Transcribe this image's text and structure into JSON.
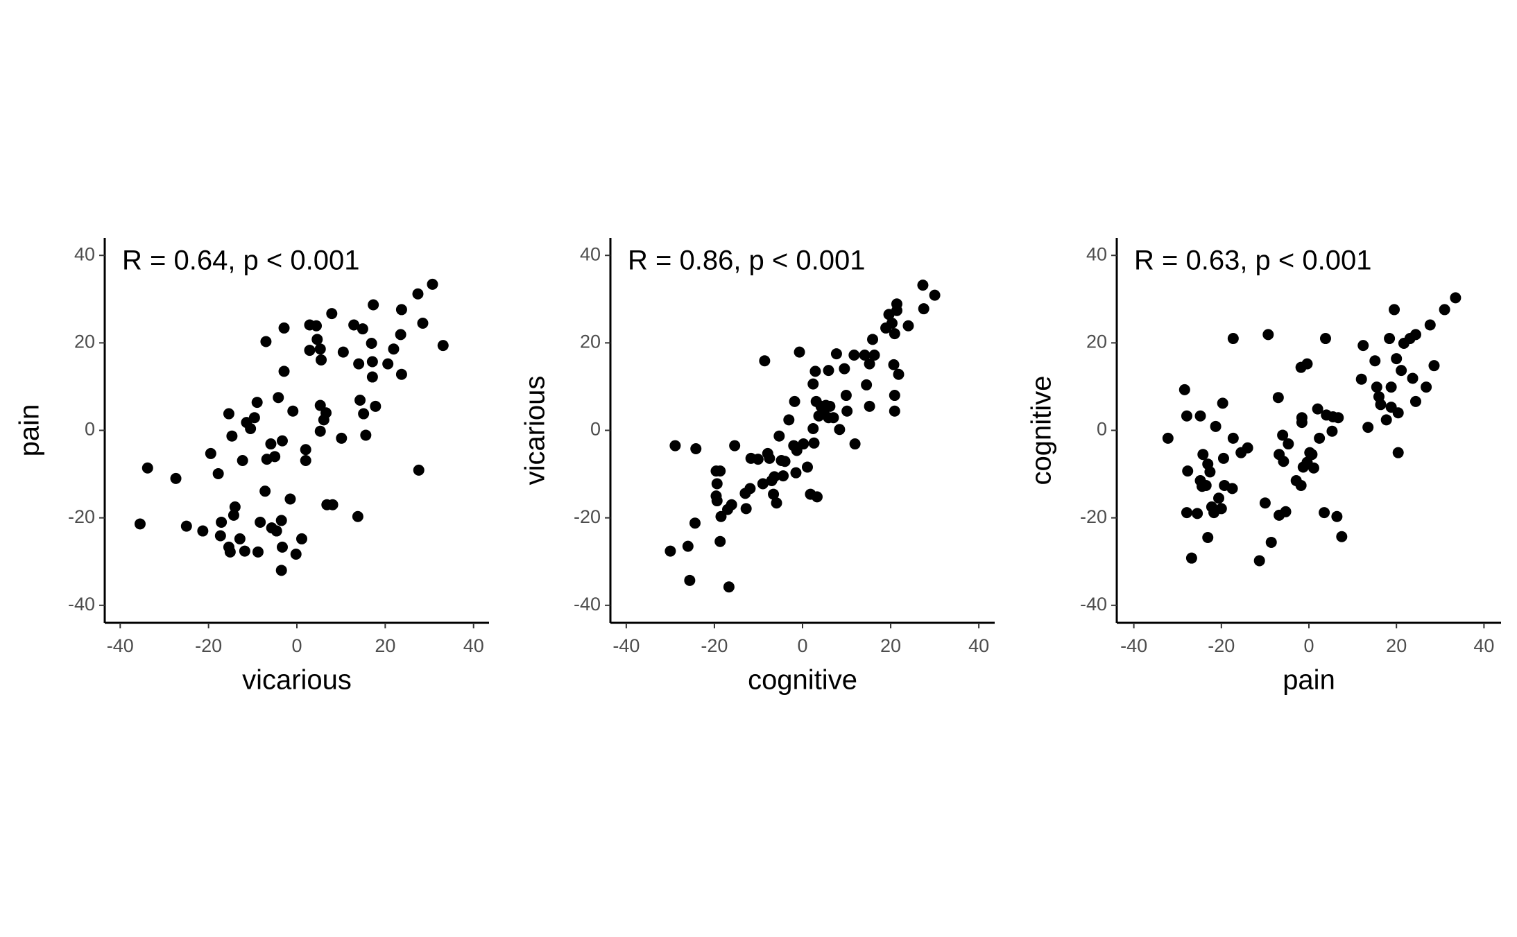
{
  "chart_data": [
    {
      "type": "scatter",
      "annotation": "R = 0.64, p < 0.001",
      "x_label": "vicarious",
      "y_label": "pain",
      "color": "#000000",
      "xlim": [
        -43.5,
        43.5
      ],
      "ylim": [
        -44,
        44
      ],
      "xticks": [
        -40,
        -20,
        0,
        20,
        40
      ],
      "yticks": [
        -40,
        -20,
        0,
        20,
        40
      ],
      "x": [
        -33.8,
        -35.5,
        -27.4,
        -25,
        -21.3,
        -19.5,
        -17.8,
        -17.1,
        -17.3,
        -15.4,
        -15.4,
        -15.1,
        -14.7,
        -14,
        -14.3,
        -12.9,
        -12.3,
        -11.8,
        -11.4,
        -10.5,
        -9.6,
        -9,
        -8.8,
        -8.3,
        -7.2,
        -7,
        -6.8,
        -5.9,
        -5.7,
        -5,
        -4.6,
        -4.2,
        -3.5,
        -3.3,
        -3.3,
        -3.5,
        -2.9,
        -2.9,
        -1.5,
        -0.9,
        -0.2,
        1.1,
        2,
        2,
        2.9,
        2.9,
        4.4,
        4.6,
        5.3,
        5.3,
        5.3,
        5.5,
        6.1,
        6.6,
        6.8,
        8.1,
        7.9,
        10.1,
        10.5,
        12.9,
        14.3,
        13.8,
        14,
        14.9,
        15.1,
        15.6,
        16.9,
        17.1,
        17.1,
        17.3,
        17.8,
        20.6,
        21.9,
        23.5,
        23.7,
        23.7,
        27.4,
        27.6,
        28.5,
        30.7,
        33.1
      ],
      "y": [
        -8.6,
        -21.4,
        -11,
        -21.9,
        -23,
        -5.3,
        -9.9,
        -21,
        -24.1,
        3.8,
        -26.7,
        -27.8,
        -1.3,
        -17.5,
        -19.4,
        -24.8,
        -6.9,
        -27.6,
        1.8,
        0.4,
        2.9,
        6.4,
        -27.8,
        -21,
        -13.9,
        20.3,
        -6.6,
        -3.1,
        -22.3,
        -6,
        -23,
        7.5,
        -20.6,
        -2.4,
        -26.7,
        -32,
        13.5,
        23.4,
        -15.7,
        4.4,
        -28.3,
        -24.8,
        -4.4,
        -6.9,
        24.1,
        18.3,
        23.9,
        20.8,
        18.6,
        5.7,
        -0.2,
        16.1,
        2.4,
        4,
        -17,
        -17,
        26.7,
        -1.8,
        17.9,
        24.1,
        6.9,
        -19.7,
        15.2,
        23.2,
        3.8,
        -1.1,
        19.9,
        15.7,
        12.2,
        28.7,
        5.5,
        15.2,
        18.6,
        21.9,
        12.8,
        27.6,
        31.2,
        -9.1,
        24.5,
        33.4,
        19.4
      ]
    },
    {
      "type": "scatter",
      "annotation": "R = 0.86, p < 0.001",
      "x_label": "cognitive",
      "y_label": "vicarious",
      "color": "#000000",
      "xlim": [
        -43.6,
        43.6
      ],
      "ylim": [
        -44,
        44
      ],
      "xticks": [
        -40,
        -20,
        0,
        20,
        40
      ],
      "yticks": [
        -40,
        -20,
        0,
        20,
        40
      ],
      "x": [
        -30,
        -28.9,
        -26,
        -25.6,
        -24.4,
        -24.2,
        -19.6,
        -18.7,
        -19.4,
        -19.6,
        -19.4,
        -18.5,
        -18.7,
        -17,
        -16.7,
        -16.1,
        -15.4,
        -13,
        -12.8,
        -11.9,
        -11.7,
        -10.1,
        -9,
        -8.6,
        -7.9,
        -7.5,
        -7,
        -6.6,
        -6.4,
        -5.9,
        -5.3,
        -4.8,
        -4.4,
        -4,
        -3.1,
        -2,
        -1.8,
        -1.5,
        -1.3,
        -0.7,
        0.2,
        1.1,
        1.8,
        2.4,
        2.4,
        2.6,
        2.9,
        3.1,
        3.3,
        3.7,
        4.2,
        4.8,
        5.3,
        5.9,
        6.2,
        5.9,
        7,
        7.7,
        8.4,
        9.5,
        9.9,
        10.1,
        11.7,
        11.9,
        14.1,
        14.5,
        15.2,
        15.2,
        15.9,
        16.3,
        18.9,
        19.6,
        20.3,
        20.9,
        20.9,
        20.7,
        20.9,
        21.4,
        21.4,
        21.8,
        24,
        27.3,
        27.5,
        30
      ],
      "y": [
        -27.6,
        -3.5,
        -26.5,
        -34.3,
        -21.2,
        -4.2,
        -9.3,
        -9.3,
        -12.2,
        -15,
        -16.1,
        -19.7,
        -25.4,
        -18.1,
        -35.8,
        -17,
        -3.5,
        -14.4,
        -17.9,
        -13.3,
        -6.4,
        -6.6,
        -12.2,
        15.9,
        -5.3,
        -6.4,
        -11.5,
        -14.6,
        -10.6,
        -16.6,
        -1.3,
        -6.9,
        -10.4,
        -7.1,
        2.4,
        -3.5,
        6.6,
        -9.7,
        -4.6,
        17.9,
        -3.1,
        -8.4,
        -14.6,
        0.4,
        10.6,
        -2.9,
        13.5,
        6.6,
        -15.2,
        3.3,
        5.5,
        4,
        5.7,
        2.9,
        5.5,
        13.7,
        2.9,
        17.5,
        0.2,
        14.1,
        8,
        4.4,
        17.2,
        -3.1,
        17.2,
        10.4,
        15.2,
        5.5,
        20.8,
        17.2,
        23.4,
        26.5,
        24.5,
        22.1,
        8,
        15,
        4.4,
        28.9,
        27.4,
        12.8,
        23.9,
        33.2,
        27.8,
        30.9
      ]
    },
    {
      "type": "scatter",
      "annotation": "R = 0.63, p < 0.001",
      "x_label": "pain",
      "y_label": "cognitive",
      "color": "#000000",
      "xlim": [
        -43.9,
        43.9
      ],
      "ylim": [
        -44,
        44
      ],
      "xticks": [
        -40,
        -20,
        0,
        20,
        40
      ],
      "yticks": [
        -40,
        -20,
        0,
        20,
        40
      ],
      "x": [
        -32.2,
        -28.4,
        -27.7,
        -27.9,
        -27.9,
        -26.8,
        -25.5,
        -24.8,
        -24.8,
        -24.4,
        -24.2,
        -23.5,
        -23.1,
        -23.1,
        -22.6,
        -22.2,
        -21.7,
        -21.3,
        -20.6,
        -20,
        -19.7,
        -19.5,
        -19.3,
        -17.5,
        -17.3,
        -17.3,
        -15.5,
        -14,
        -11.3,
        -10,
        -9.3,
        -8.6,
        -7,
        -6.8,
        -6.8,
        -6,
        -5.8,
        -5.3,
        -4.7,
        -2.9,
        -1.8,
        -1.6,
        -1.6,
        -1.8,
        -1.3,
        -0.4,
        -0.4,
        0.2,
        0.7,
        1.1,
        2,
        2.4,
        3.5,
        3.8,
        4,
        5.3,
        5.5,
        6.4,
        6.7,
        7.5,
        12.4,
        12,
        13.5,
        15.1,
        15.5,
        16,
        16.4,
        17.7,
        18.4,
        18.8,
        18.8,
        19.5,
        20,
        20.4,
        20.4,
        21.1,
        21.7,
        23.1,
        23.7,
        24.4,
        24.4,
        26.8,
        27.7,
        28.6,
        31,
        33.5
      ],
      "y": [
        -1.8,
        9.3,
        -9.3,
        3.3,
        -18.8,
        -29.2,
        -19,
        3.3,
        -11.5,
        -12.8,
        -5.5,
        -12.6,
        -7.7,
        -24.5,
        -9.5,
        -17.5,
        -18.8,
        0.9,
        -15.5,
        -17.9,
        6.2,
        -6.4,
        -12.6,
        -13.3,
        -1.8,
        21,
        -5.1,
        -4,
        -29.8,
        -16.6,
        21.9,
        -25.6,
        7.5,
        -5.5,
        -19.4,
        -1.1,
        -7.1,
        -18.6,
        -3.1,
        -11.5,
        14.4,
        2.9,
        1.8,
        -12.6,
        -8.4,
        15.2,
        -7.3,
        -5.1,
        -5.5,
        -8.6,
        4.9,
        -1.8,
        -18.8,
        21,
        3.5,
        -0.2,
        3.1,
        -19.7,
        2.9,
        -24.3,
        19.4,
        11.7,
        0.7,
        15.9,
        9.9,
        7.7,
        5.9,
        2.4,
        21,
        9.9,
        5.3,
        27.6,
        16.4,
        4,
        -5.1,
        13.7,
        19.9,
        21,
        11.9,
        21.9,
        6.6,
        9.9,
        24.1,
        14.8,
        27.6,
        30.3
      ]
    }
  ]
}
